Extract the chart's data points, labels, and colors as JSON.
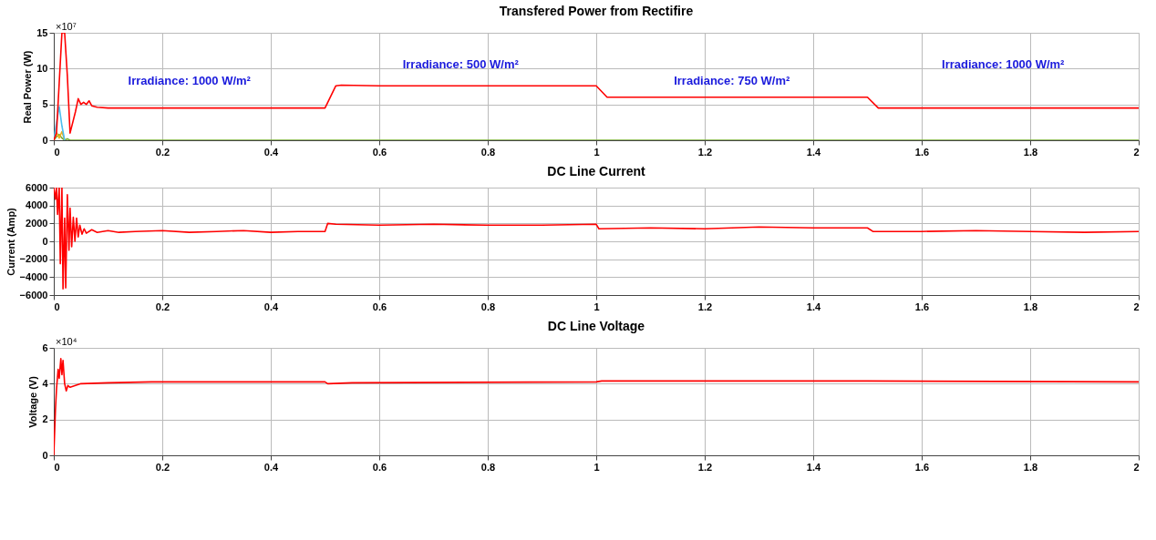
{
  "chart_data": [
    {
      "type": "line",
      "title": "Transfered Power from Rectifire",
      "ylabel": "Real Power (W)",
      "xlim": [
        0,
        2
      ],
      "xticks": [
        0,
        0.2,
        0.4,
        0.6,
        0.8,
        1,
        1.2,
        1.4,
        1.6,
        1.8,
        2
      ],
      "ylim": [
        0,
        15
      ],
      "yticks": [
        0,
        5,
        10,
        15
      ],
      "grid": true,
      "legend": false,
      "annotations": [
        "×10⁷",
        "Irradiance: 1000 W/m²",
        "Irradiance: 500 W/m²",
        "Irradiance: 750 W/m²",
        "Irradiance: 1000 W/m²"
      ],
      "series": [
        {
          "color": "#77ac30",
          "x": [
            0,
            0.005,
            0.01,
            0.015,
            0.02,
            0.025,
            0.03,
            0.035,
            2
          ],
          "values": [
            0,
            0.5,
            0.8,
            0.3,
            0,
            0.2,
            0,
            0,
            0
          ]
        },
        {
          "color": "#edb120",
          "x": [
            0,
            0.005,
            0.01,
            0.015,
            0.02
          ],
          "values": [
            0,
            1.1,
            0.3,
            1.2,
            0
          ]
        },
        {
          "color": "#4dbeee",
          "x": [
            0,
            0.005,
            0.01,
            0.015,
            0.02
          ],
          "values": [
            0,
            2.5,
            4.7,
            2,
            0
          ]
        },
        {
          "color": "#ff0000",
          "x": [
            0,
            0.005,
            0.01,
            0.015,
            0.02,
            0.025,
            0.03,
            0.035,
            0.04,
            0.045,
            0.05,
            0.055,
            0.06,
            0.065,
            0.07,
            0.08,
            0.1,
            0.3,
            0.5,
            0.52,
            0.53,
            0.6,
            0.8,
            1.0,
            1.02,
            1.2,
            1.5,
            1.52,
            1.7,
            2.0
          ],
          "values": [
            0,
            1,
            8,
            15,
            15,
            9,
            1,
            2.5,
            4,
            5.8,
            5,
            5.3,
            5,
            5.5,
            4.8,
            4.6,
            4.5,
            4.5,
            4.5,
            7.6,
            7.7,
            7.6,
            7.6,
            7.6,
            6.0,
            6.0,
            6.0,
            4.5,
            4.5,
            4.5
          ]
        }
      ]
    },
    {
      "type": "line",
      "title": "DC Line Current",
      "ylabel": "Current (Amp)",
      "xlim": [
        0,
        2
      ],
      "xticks": [
        0,
        0.2,
        0.4,
        0.6,
        0.8,
        1,
        1.2,
        1.4,
        1.6,
        1.8,
        2
      ],
      "ylim": [
        -6000,
        6000
      ],
      "yticks": [
        -6000,
        -4000,
        -2000,
        0,
        2000,
        4000,
        6000
      ],
      "grid": true,
      "legend": false,
      "series": [
        {
          "color": "#ff0000",
          "x": [
            0,
            0.003,
            0.005,
            0.007,
            0.01,
            0.012,
            0.015,
            0.017,
            0.02,
            0.022,
            0.025,
            0.028,
            0.03,
            0.033,
            0.036,
            0.039,
            0.042,
            0.045,
            0.048,
            0.052,
            0.056,
            0.06,
            0.07,
            0.08,
            0.1,
            0.12,
            0.15,
            0.2,
            0.25,
            0.3,
            0.35,
            0.4,
            0.45,
            0.5,
            0.505,
            0.52,
            0.6,
            0.7,
            0.8,
            0.9,
            1.0,
            1.005,
            1.1,
            1.2,
            1.3,
            1.4,
            1.5,
            1.51,
            1.6,
            1.7,
            1.8,
            1.9,
            2.0
          ],
          "values": [
            6000,
            4700,
            6000,
            3000,
            6000,
            -2500,
            6000,
            -5300,
            2600,
            -5200,
            5200,
            -1000,
            3700,
            -600,
            2700,
            0,
            2600,
            500,
            1800,
            800,
            1400,
            900,
            1300,
            1000,
            1200,
            1000,
            1100,
            1200,
            1000,
            1100,
            1200,
            1000,
            1100,
            1100,
            2000,
            1900,
            1800,
            1900,
            1800,
            1800,
            1900,
            1400,
            1500,
            1400,
            1600,
            1500,
            1500,
            1100,
            1100,
            1200,
            1100,
            1000,
            1100
          ]
        }
      ]
    },
    {
      "type": "line",
      "title": "DC Line Voltage",
      "ylabel": "Voltage (V)",
      "xlim": [
        0,
        2
      ],
      "xticks": [
        0,
        0.2,
        0.4,
        0.6,
        0.8,
        1,
        1.2,
        1.4,
        1.6,
        1.8,
        2
      ],
      "ylim": [
        0,
        6
      ],
      "yticks": [
        0,
        2,
        4,
        6
      ],
      "grid": true,
      "legend": false,
      "annotations": [
        "×10⁴"
      ],
      "series": [
        {
          "color": "#ff0000",
          "x": [
            0,
            0.003,
            0.005,
            0.008,
            0.01,
            0.013,
            0.015,
            0.017,
            0.02,
            0.023,
            0.026,
            0.03,
            0.05,
            0.1,
            0.18,
            0.5,
            0.505,
            0.55,
            1.0,
            1.01,
            1.5,
            2.0
          ],
          "values": [
            0,
            2.5,
            3.7,
            4.8,
            4.3,
            5.4,
            4.5,
            5.3,
            4.0,
            3.6,
            3.9,
            3.8,
            4.0,
            4.05,
            4.1,
            4.1,
            4.0,
            4.05,
            4.1,
            4.15,
            4.15,
            4.1
          ]
        }
      ]
    }
  ]
}
